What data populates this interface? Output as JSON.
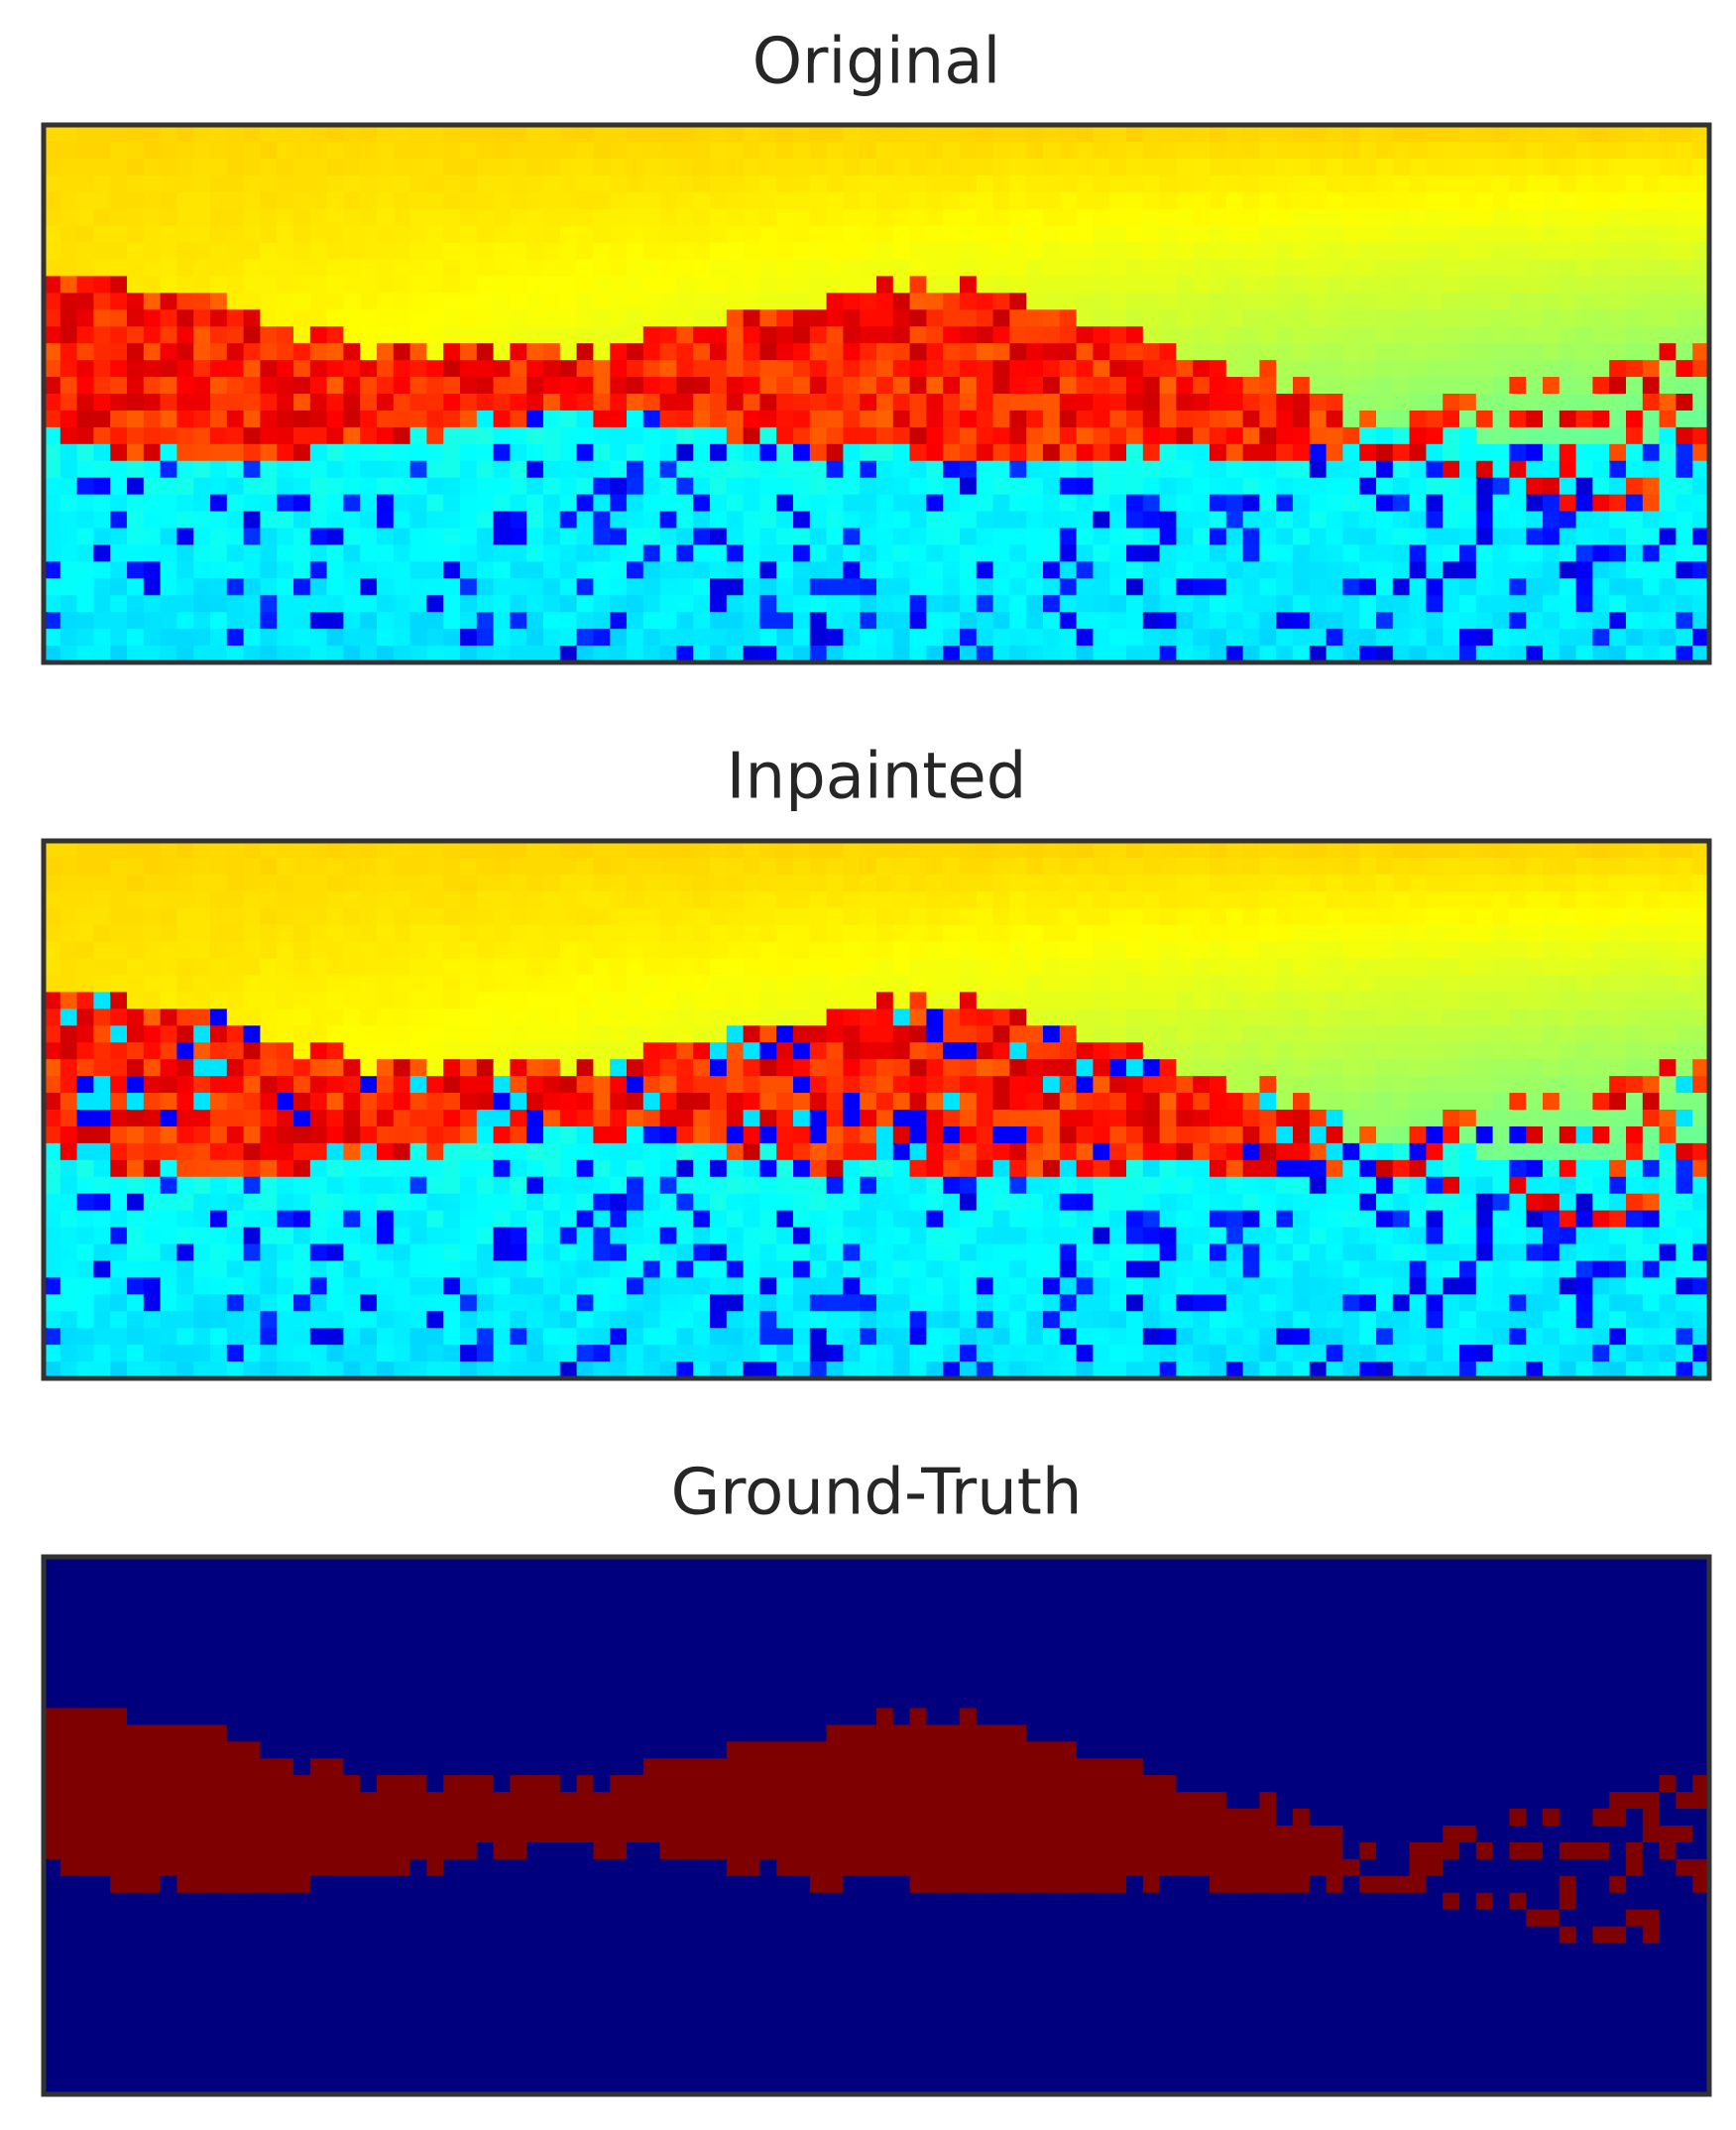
{
  "panels": [
    {
      "title": "Original"
    },
    {
      "title": "Inpainted"
    },
    {
      "title": "Ground-Truth"
    }
  ]
}
